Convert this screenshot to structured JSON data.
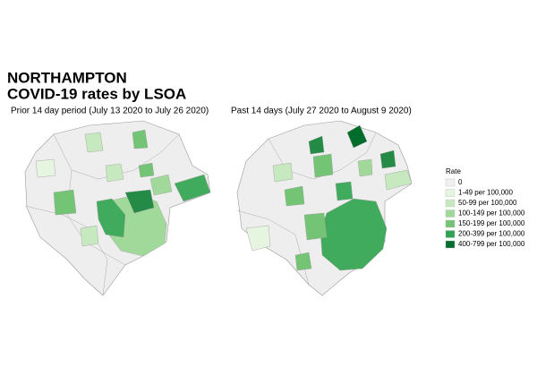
{
  "title": [
    "NORTHAMPTON",
    "COVID-19 rates by LSOA"
  ],
  "maps": [
    {
      "subtitle": "Prior 14 day period (July 13 2020 to July 26 2020)"
    },
    {
      "subtitle": "Past 14 days (July 27 2020 to August  9 2020)"
    }
  ],
  "legend": {
    "title": "Rate",
    "items": [
      {
        "label": "0",
        "color": "#f0f0f0"
      },
      {
        "label": "1-49 per 100,000",
        "color": "#e5f5e0"
      },
      {
        "label": "50-99 per 100,000",
        "color": "#c7e9c0"
      },
      {
        "label": "100-149 per 100,000",
        "color": "#a1d99b"
      },
      {
        "label": "150-199 per 100,000",
        "color": "#74c476"
      },
      {
        "label": "200-399 per 100,000",
        "color": "#31a354"
      },
      {
        "label": "400-799 per 100,000",
        "color": "#006d2c"
      }
    ]
  }
}
